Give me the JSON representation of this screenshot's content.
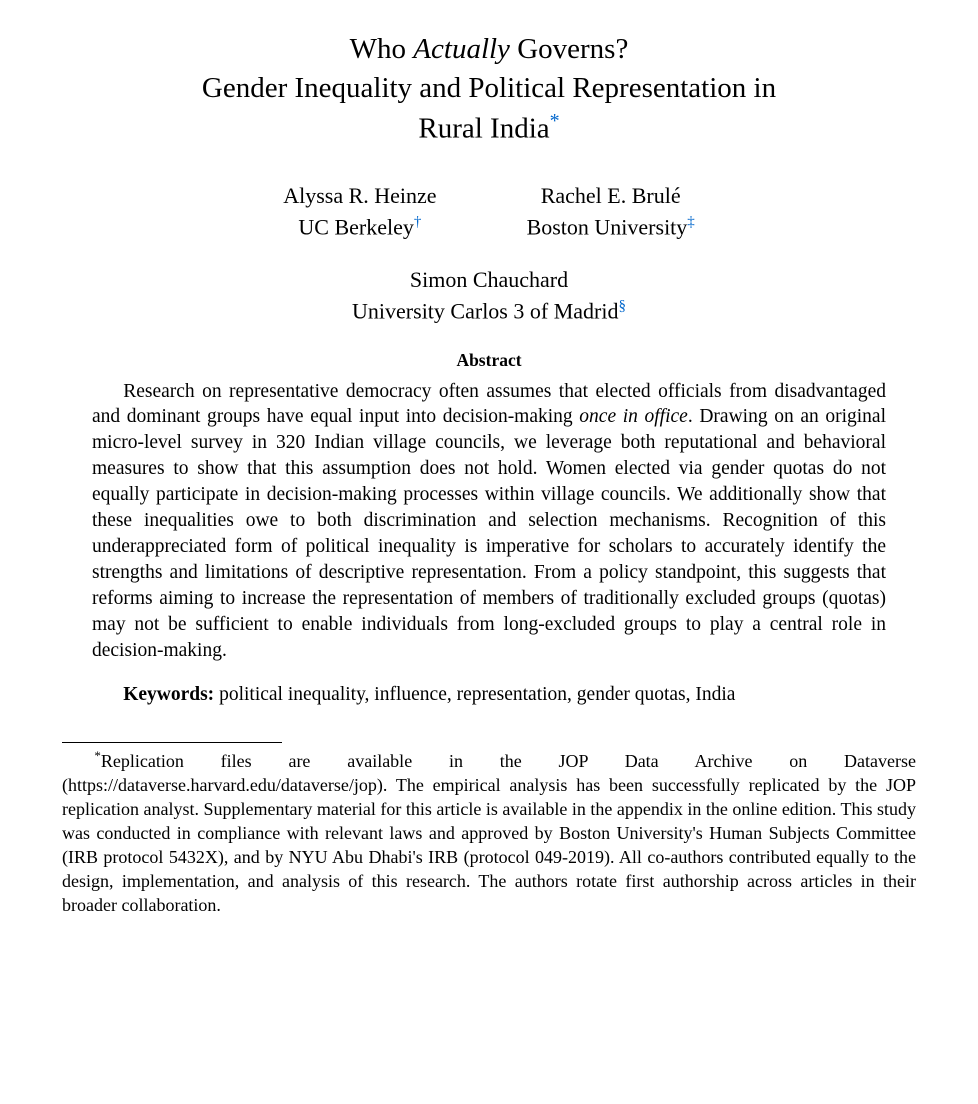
{
  "title": {
    "line1_pre": "Who ",
    "line1_italic": "Actually",
    "line1_post": " Governs?",
    "line2": "Gender Inequality and Political Representation in",
    "line3": "Rural India",
    "fn_mark": "*",
    "fn_color": "#0066cc"
  },
  "authors": {
    "row1": [
      {
        "name": "Alyssa R. Heinze",
        "affil": "UC Berkeley",
        "mark": "†"
      },
      {
        "name": "Rachel E. Brulé",
        "affil": "Boston University",
        "mark": "‡"
      }
    ],
    "row2": [
      {
        "name": "Simon Chauchard",
        "affil": "University Carlos 3 of Madrid",
        "mark": "§"
      }
    ]
  },
  "abstract": {
    "heading": "Abstract",
    "pre": "Research on representative democracy often assumes that elected officials from disadvantaged and dominant groups have equal input into decision-making ",
    "italic": "once in office",
    "post": ". Drawing on an original micro-level survey in 320 Indian village councils, we leverage both reputational and behavioral measures to show that this assumption does not hold. Women elected via gender quotas do not equally participate in decision-making processes within village councils. We additionally show that these inequalities owe to both discrimination and selection mechanisms. Recognition of this underappreciated form of political inequality is imperative for scholars to accurately identify the strengths and limitations of descriptive representation. From a policy standpoint, this suggests that reforms aiming to increase the representation of members of traditionally excluded groups (quotas) may not be sufficient to enable individuals from long-excluded groups to play a central role in decision-making."
  },
  "keywords": {
    "label": "Keywords:",
    "text": " political inequality, influence, representation, gender quotas, India"
  },
  "footnote": {
    "mark": "*",
    "text": "Replication files are available in the JOP Data Archive on Dataverse (https://dataverse.harvard.edu/dataverse/jop). The empirical analysis has been successfully replicated by the JOP replication analyst. Supplementary material for this article is available in the appendix in the online edition. This study was conducted in compliance with relevant laws and approved by Boston University's Human Subjects Committee (IRB protocol 5432X), and by NYU Abu Dhabi's IRB (protocol 049-2019). All co-authors contributed equally to the design, implementation, and analysis of this research. The authors rotate first authorship across articles in their broader collaboration."
  },
  "colors": {
    "link": "#0066cc",
    "text": "#000000",
    "background": "#ffffff"
  },
  "fonts": {
    "body_family": "Palatino",
    "title_size_pt": 22,
    "author_size_pt": 16,
    "body_size_pt": 14.5,
    "footnote_size_pt": 13.5
  }
}
